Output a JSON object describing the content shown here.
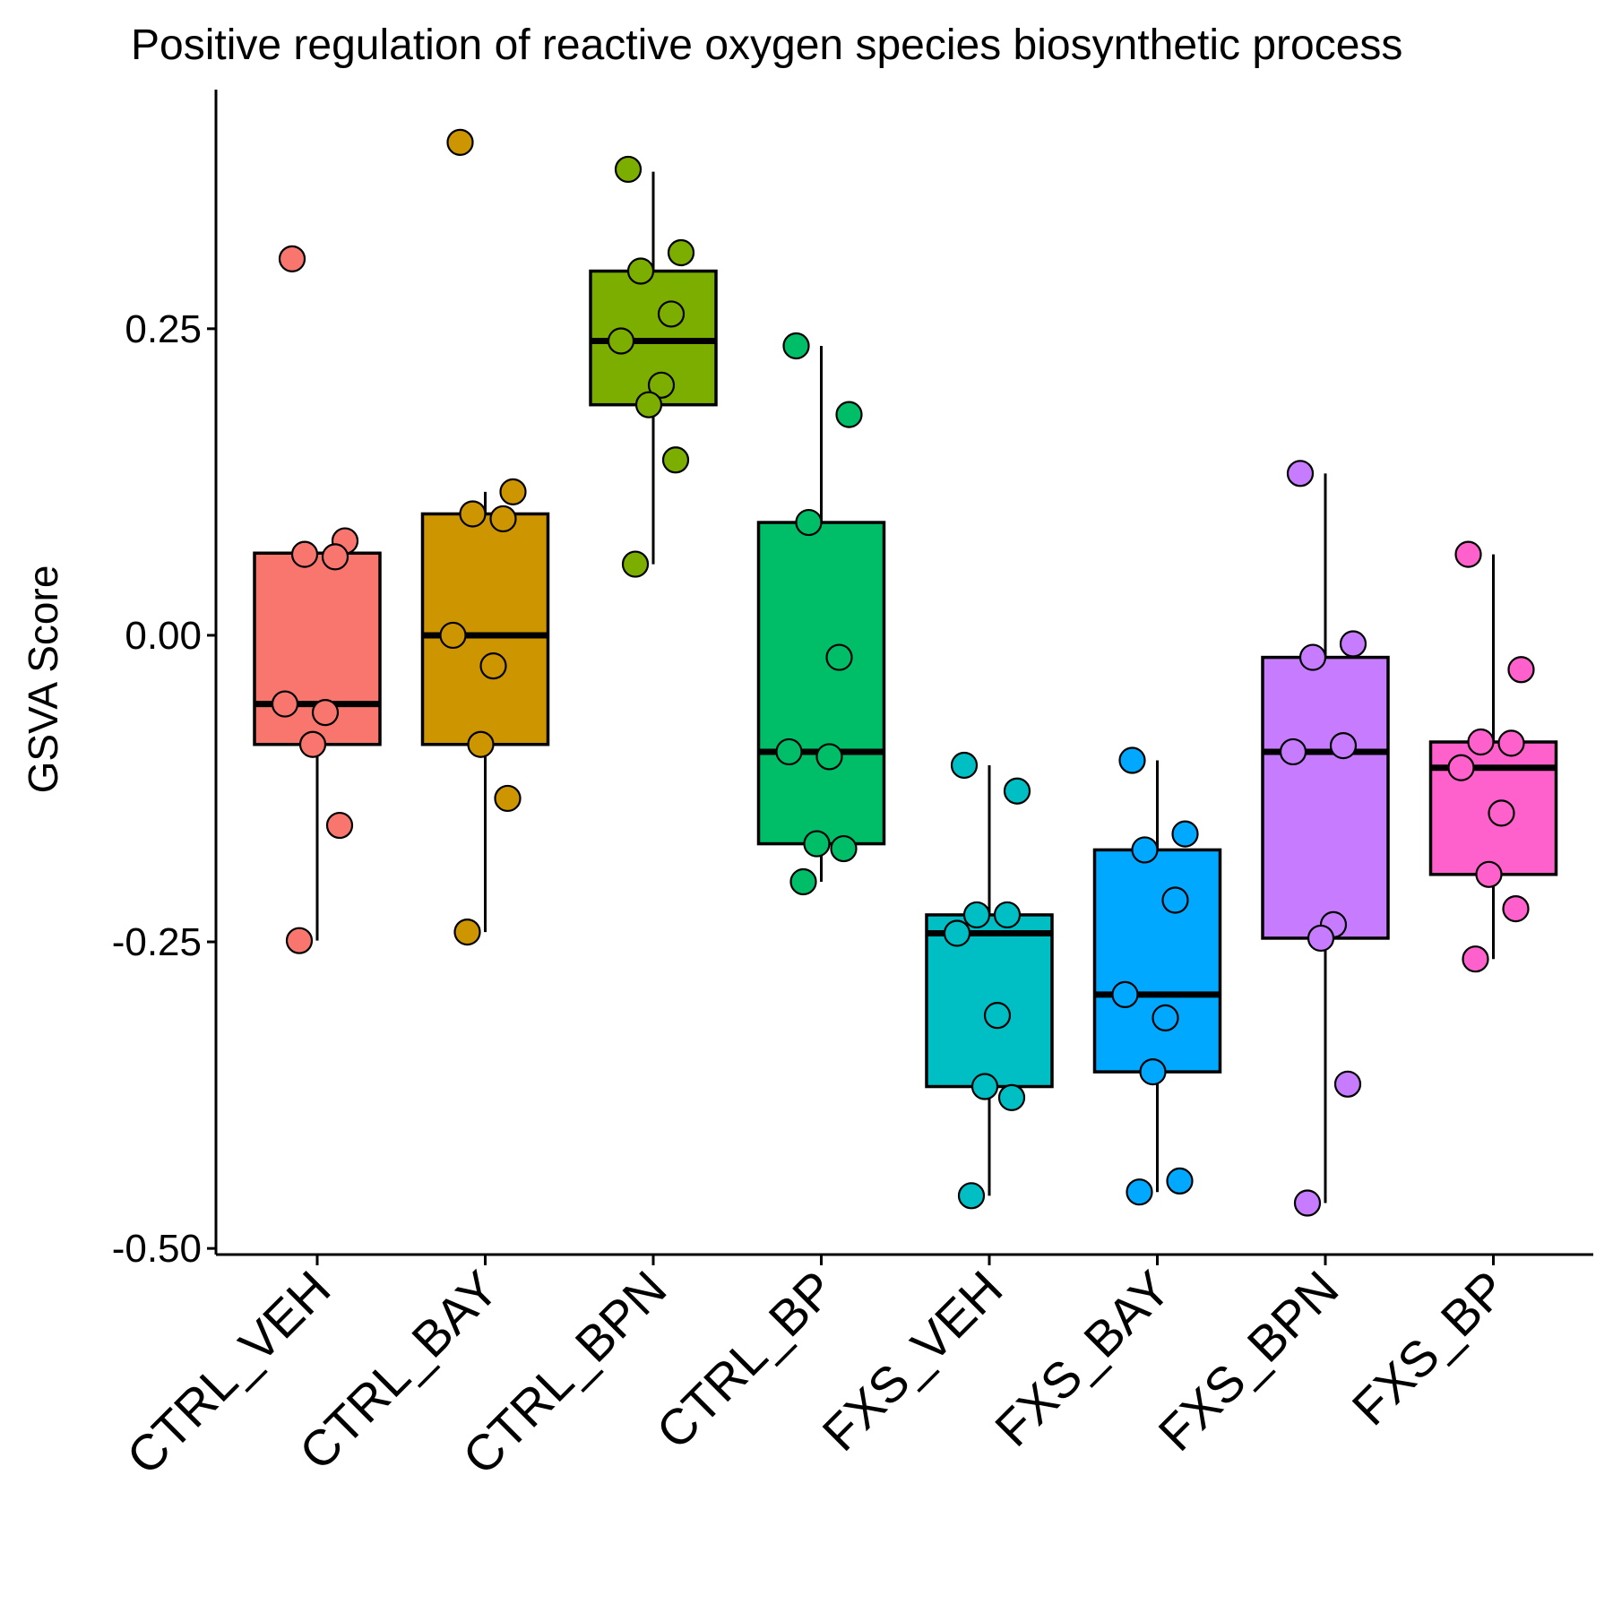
{
  "chart_data": {
    "type": "box",
    "title": "Positive regulation of reactive oxygen species biosynthetic process",
    "xlabel": "",
    "ylabel": "GSVA Score",
    "ylim": [
      -0.505,
      0.445
    ],
    "yticks": [
      -0.5,
      -0.25,
      0.0,
      0.25
    ],
    "ytick_labels": [
      "-0.50",
      "-0.25",
      "0.00",
      "0.25"
    ],
    "legend": "none",
    "grid": false,
    "categories": [
      "CTRL_VEH",
      "CTRL_BAY",
      "CTRL_BPN",
      "CTRL_BP",
      "FXS_VEH",
      "FXS_BAY",
      "FXS_BPN",
      "FXS_BP"
    ],
    "series": [
      {
        "category": "CTRL_VEH",
        "color": "#F8766D",
        "box": {
          "q1": -0.089,
          "median": -0.056,
          "q3": 0.067,
          "whisker_low": -0.249,
          "whisker_high": 0.067
        },
        "points": [
          0.307,
          0.077,
          0.066,
          0.064,
          -0.056,
          -0.063,
          -0.089,
          -0.155,
          -0.249
        ]
      },
      {
        "category": "CTRL_BAY",
        "color": "#CD9600",
        "box": {
          "q1": -0.089,
          "median": 0.0,
          "q3": 0.099,
          "whisker_low": -0.242,
          "whisker_high": 0.117
        },
        "points": [
          0.402,
          0.117,
          0.099,
          0.095,
          0.0,
          -0.025,
          -0.089,
          -0.133,
          -0.242
        ]
      },
      {
        "category": "CTRL_BPN",
        "color": "#7CAE00",
        "box": {
          "q1": 0.188,
          "median": 0.24,
          "q3": 0.297,
          "whisker_low": 0.058,
          "whisker_high": 0.378
        },
        "points": [
          0.38,
          0.312,
          0.297,
          0.262,
          0.24,
          0.204,
          0.188,
          0.143,
          0.058
        ]
      },
      {
        "category": "CTRL_BP",
        "color": "#00BE67",
        "box": {
          "q1": -0.17,
          "median": -0.095,
          "q3": 0.092,
          "whisker_low": -0.201,
          "whisker_high": 0.236
        },
        "points": [
          0.236,
          0.18,
          0.092,
          -0.018,
          -0.095,
          -0.099,
          -0.17,
          -0.174,
          -0.201
        ]
      },
      {
        "category": "FXS_VEH",
        "color": "#00BFC4",
        "box": {
          "q1": -0.368,
          "median": -0.243,
          "q3": -0.228,
          "whisker_low": -0.457,
          "whisker_high": -0.106
        },
        "points": [
          -0.106,
          -0.127,
          -0.228,
          -0.228,
          -0.243,
          -0.31,
          -0.368,
          -0.377,
          -0.457
        ]
      },
      {
        "category": "FXS_BAY",
        "color": "#00A9FF",
        "box": {
          "q1": -0.356,
          "median": -0.293,
          "q3": -0.175,
          "whisker_low": -0.454,
          "whisker_high": -0.102
        },
        "points": [
          -0.102,
          -0.162,
          -0.175,
          -0.216,
          -0.293,
          -0.312,
          -0.356,
          -0.445,
          -0.454
        ]
      },
      {
        "category": "FXS_BPN",
        "color": "#C77CFF",
        "box": {
          "q1": -0.247,
          "median": -0.095,
          "q3": -0.018,
          "whisker_low": -0.463,
          "whisker_high": 0.132
        },
        "points": [
          0.132,
          -0.007,
          -0.018,
          -0.09,
          -0.095,
          -0.236,
          -0.247,
          -0.366,
          -0.463
        ]
      },
      {
        "category": "FXS_BP",
        "color": "#FF61CC",
        "box": {
          "q1": -0.195,
          "median": -0.108,
          "q3": -0.087,
          "whisker_low": -0.264,
          "whisker_high": 0.066
        },
        "points": [
          0.066,
          -0.028,
          -0.087,
          -0.088,
          -0.108,
          -0.145,
          -0.195,
          -0.223,
          -0.264
        ]
      }
    ]
  }
}
